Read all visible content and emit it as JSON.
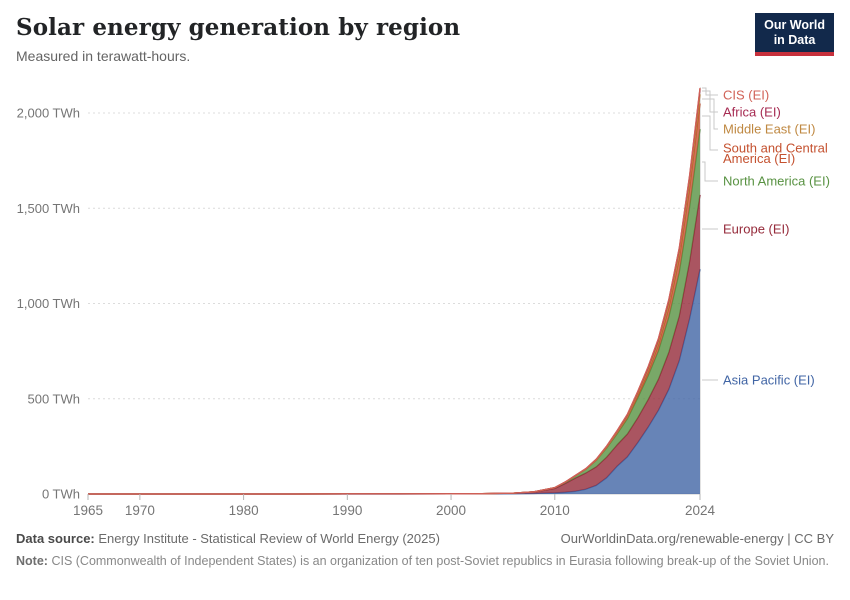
{
  "header": {
    "title": "Solar energy generation by region",
    "subtitle": "Measured in terawatt-hours.",
    "logo": {
      "line1": "Our World",
      "line2": "in Data",
      "bg": "#12294b",
      "accent": "#c7303c"
    }
  },
  "chart_data": {
    "type": "area",
    "stacked": true,
    "title": "Solar energy generation by region",
    "unit": "TWh",
    "xlabel": "",
    "ylabel": "terawatt-hours",
    "xlim": [
      1965,
      2024
    ],
    "ylim": [
      0,
      2100
    ],
    "grid": "dashed horizontal gridlines",
    "legend_position": "right-edge labels with connector lines",
    "x": [
      1965,
      1970,
      1975,
      1980,
      1985,
      1990,
      1995,
      2000,
      2003,
      2006,
      2008,
      2010,
      2011,
      2012,
      2013,
      2014,
      2015,
      2016,
      2017,
      2018,
      2019,
      2020,
      2021,
      2022,
      2023,
      2024
    ],
    "series": [
      {
        "name": "Asia Pacific (EI)",
        "color": "#4165A5",
        "values": [
          0,
          0,
          0,
          0,
          0.01,
          0.03,
          0.08,
          0.3,
          0.8,
          1.5,
          2.5,
          6,
          9,
          14,
          25,
          45,
          85,
          145,
          195,
          270,
          350,
          440,
          550,
          700,
          920,
          1180
        ]
      },
      {
        "name": "Europe (EI)",
        "color": "#952A3A",
        "values": [
          0,
          0,
          0,
          0,
          0.01,
          0.04,
          0.08,
          0.12,
          0.5,
          2.5,
          7.5,
          23,
          46,
          70,
          85,
          98,
          108,
          112,
          120,
          130,
          145,
          163,
          195,
          235,
          300,
          390
        ]
      },
      {
        "name": "North America (EI)",
        "color": "#589242",
        "values": [
          0,
          0,
          0,
          0,
          0.01,
          0.4,
          0.5,
          0.5,
          0.6,
          0.7,
          1.5,
          4,
          7,
          12,
          20,
          34,
          48,
          58,
          80,
          105,
          125,
          150,
          185,
          230,
          285,
          345
        ]
      },
      {
        "name": "South and Central America (EI)",
        "color": "#C4512F",
        "values": [
          0,
          0,
          0,
          0,
          0,
          0,
          0,
          0,
          0,
          0,
          0,
          0.1,
          0.2,
          0.3,
          0.5,
          1,
          2.5,
          5,
          8,
          13,
          20,
          30,
          48,
          72,
          100,
          135
        ]
      },
      {
        "name": "Middle East (EI)",
        "color": "#BF8841",
        "values": [
          0,
          0,
          0,
          0,
          0,
          0,
          0,
          0,
          0,
          0,
          0.1,
          0.2,
          0.3,
          0.5,
          1,
          1.5,
          2.5,
          4,
          6,
          9,
          13,
          18,
          25,
          32,
          40,
          48
        ]
      },
      {
        "name": "Africa (EI)",
        "color": "#A62B52",
        "values": [
          0,
          0,
          0,
          0,
          0,
          0,
          0,
          0,
          0,
          0,
          0.1,
          0.3,
          0.6,
          1.2,
          2,
          3.5,
          5,
          7,
          9,
          11,
          13,
          15,
          18,
          21,
          24,
          28
        ]
      },
      {
        "name": "CIS (EI)",
        "color": "#D16257",
        "values": [
          0,
          0,
          0,
          0,
          0,
          0,
          0,
          0,
          0,
          0,
          0,
          0,
          0,
          0,
          0,
          0.1,
          0.3,
          0.6,
          0.8,
          1,
          1.5,
          2,
          2.5,
          3.5,
          4.5,
          6
        ]
      }
    ],
    "yticks": [
      {
        "value": 2000,
        "label": "2,000 TWh"
      },
      {
        "value": 1500,
        "label": "1,500 TWh"
      },
      {
        "value": 1000,
        "label": "1,000 TWh"
      },
      {
        "value": 500,
        "label": "500 TWh"
      },
      {
        "value": 0,
        "label": "0 TWh"
      }
    ],
    "xticks": [
      1965,
      1970,
      1980,
      1990,
      2000,
      2010,
      2024
    ]
  },
  "legend": [
    {
      "label": "CIS (EI)",
      "color": "#D16257",
      "lines": [
        "CIS (EI)"
      ]
    },
    {
      "label": "Africa (EI)",
      "color": "#A62B52",
      "lines": [
        "Africa (EI)"
      ]
    },
    {
      "label": "Middle East (EI)",
      "color": "#BF8841",
      "lines": [
        "Middle East (EI)"
      ]
    },
    {
      "label": "South and Central America (EI)",
      "color": "#C4512F",
      "lines": [
        "South and Central",
        "America (EI)"
      ]
    },
    {
      "label": "North America (EI)",
      "color": "#589242",
      "lines": [
        "North America (EI)"
      ]
    },
    {
      "label": "Europe (EI)",
      "color": "#952A3A",
      "lines": [
        "Europe (EI)"
      ]
    },
    {
      "label": "Asia Pacific (EI)",
      "color": "#4165A5",
      "lines": [
        "Asia Pacific (EI)"
      ]
    }
  ],
  "footer": {
    "source_label": "Data source:",
    "source_text": "Energy Institute - Statistical Review of World Energy (2025)",
    "link_text": "OurWorldinData.org/renewable-energy | CC BY",
    "note_label": "Note:",
    "note_text": "CIS (Commonwealth of Independent States) is an organization of ten post-Soviet republics in Eurasia following break-up of the Soviet Union."
  }
}
